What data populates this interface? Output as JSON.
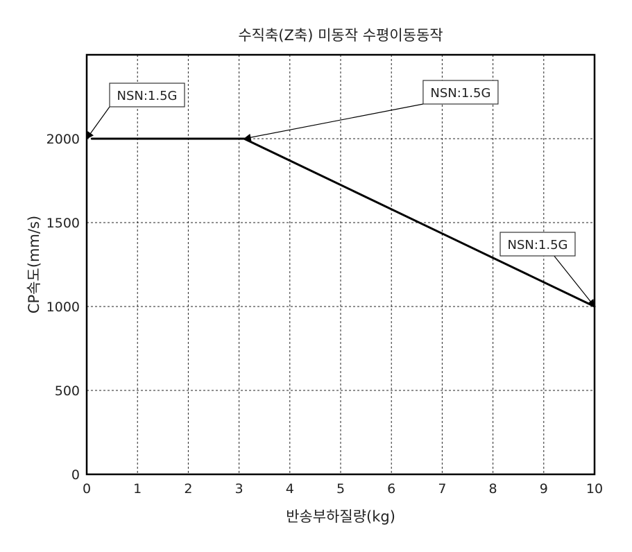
{
  "chart_data": {
    "type": "line",
    "title": "수직축(Z축) 미동작 수평이동동작",
    "xlabel": "반송부하질량(kg)",
    "ylabel": "CP속도(mm/s)",
    "xlim": [
      0,
      10
    ],
    "ylim": [
      0,
      2500
    ],
    "x_ticks": [
      "0",
      "1",
      "2",
      "3",
      "4",
      "5",
      "6",
      "7",
      "8",
      "9",
      "10"
    ],
    "y_ticks": [
      "0",
      "500",
      "1000",
      "1500",
      "2000"
    ],
    "grid": true,
    "series": [
      {
        "x": [
          0.1,
          3.1,
          10
        ],
        "y": [
          2000,
          2000,
          1000
        ]
      }
    ],
    "annotations": [
      {
        "text": "NSN:1.5G",
        "x": 0,
        "y": 2000
      },
      {
        "text": "NSN:1.5G",
        "x": 3.1,
        "y": 2000
      },
      {
        "text": "NSN:1.5G",
        "x": 10,
        "y": 1000
      }
    ]
  }
}
